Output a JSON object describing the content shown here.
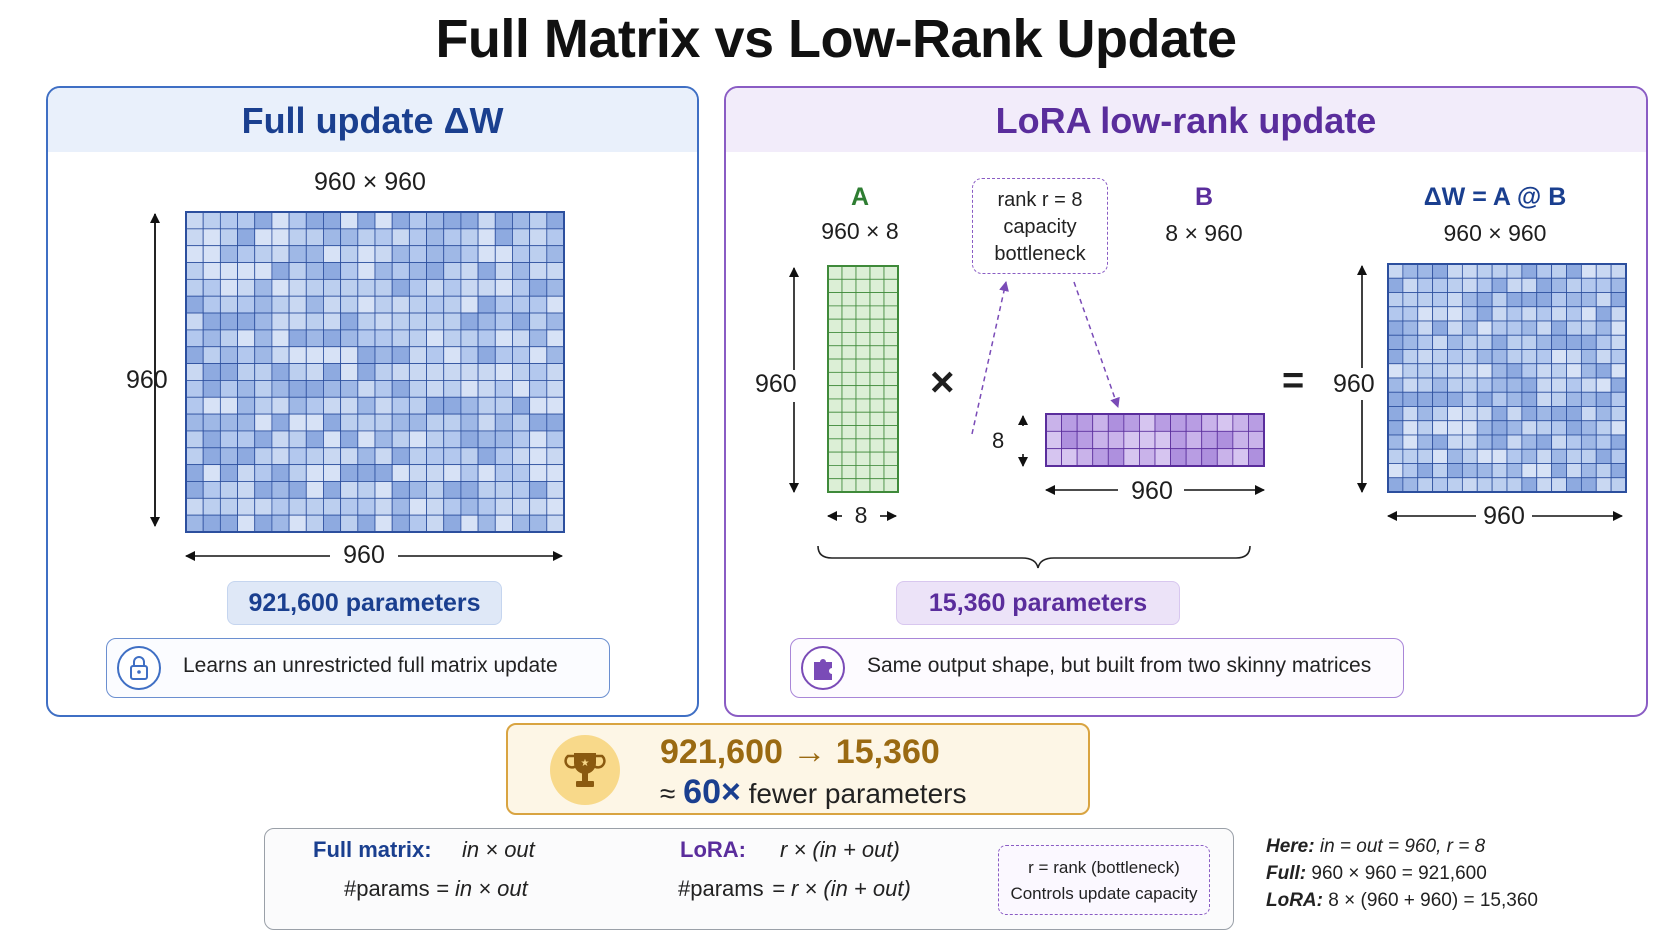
{
  "title": "Full Matrix vs Low-Rank Update",
  "full_panel": {
    "title": "Full update ΔW",
    "size_label": "960 × 960",
    "rows_label": "960",
    "cols_label": "960",
    "params": "921,600 parameters",
    "note": "Learns an unrestricted full matrix update",
    "note_icon": "lock-icon"
  },
  "lora_panel": {
    "title": "LoRA low-rank update",
    "a_name": "A",
    "a_size": "960 × 8",
    "a_rows": "960",
    "a_cols": "8",
    "times": "×",
    "bottleneck_line1": "rank r = 8",
    "bottleneck_line2": "capacity",
    "bottleneck_line3": "bottleneck",
    "b_name": "B",
    "b_size": "8 × 960",
    "b_rows": "8",
    "b_cols": "960",
    "equals": "=",
    "dw_name": "ΔW = A @ B",
    "dw_size": "960 × 960",
    "dw_rows": "960",
    "dw_cols": "960",
    "params": "15,360 parameters",
    "note": "Same output shape, but built from two skinny matrices",
    "note_icon": "puzzle-icon"
  },
  "result": {
    "line1": "921,600 → 15,360",
    "approx": "≈",
    "factor": "60×",
    "line2_rest": "fewer parameters",
    "icon": "trophy-icon"
  },
  "formulas": {
    "full_key": "Full matrix:",
    "full_expr": "in × out",
    "full_params_label": "#params",
    "full_params_expr": "= in × out",
    "lora_key": "LoRA:",
    "lora_expr": "r × (in + out)",
    "lora_params_label": "#params",
    "lora_params_expr": "= r × (in + out)",
    "rank_line1": "r = rank (bottleneck)",
    "rank_line2": "Controls update capacity"
  },
  "side_notes": {
    "here_key": "Here:",
    "here_val": "in = out = 960, r = 8",
    "full_key": "Full:",
    "full_val": "960 × 960 = 921,600",
    "lora_key": "LoRA:",
    "lora_val": "8 × (960 + 960) = 15,360"
  },
  "colors": {
    "full_accent": "#1a3f8f",
    "lora_accent": "#5a2d9c",
    "a_matrix": "#dcefd6",
    "b_matrix": "#c9b3ea",
    "result_accent": "#9a6a12"
  }
}
